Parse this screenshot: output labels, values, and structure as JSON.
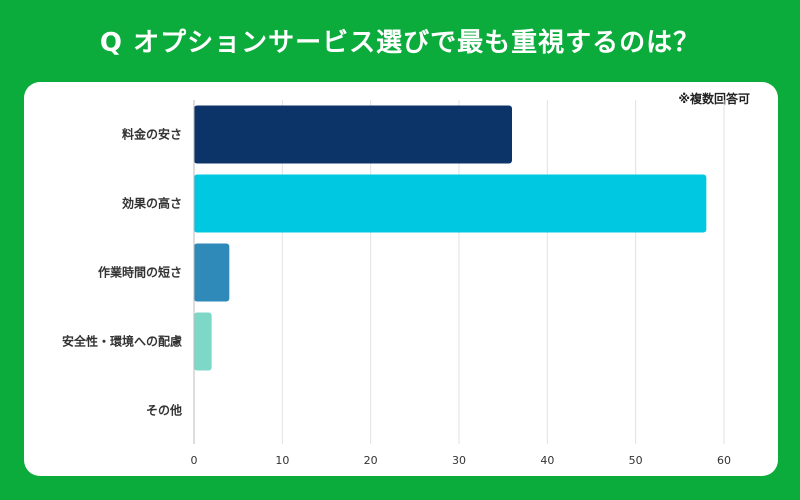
{
  "header": {
    "title": "Q オプションサービス選びで最も重視するのは？"
  },
  "note": "※複数回答可",
  "chart_data": {
    "type": "bar",
    "orientation": "horizontal",
    "title": "Q オプションサービス選びで最も重視するのは？",
    "categories": [
      "料金の安さ",
      "効果の高さ",
      "作業時間の短さ",
      "安全性・環境への配慮",
      "その他"
    ],
    "values": [
      36,
      58,
      4,
      2,
      0
    ],
    "colors": [
      "#0d3468",
      "#00c8e0",
      "#2f8ab9",
      "#7dd8c8",
      "#cccccc"
    ],
    "xlim": [
      0,
      60
    ],
    "xticks": [
      0,
      10,
      20,
      30,
      40,
      50,
      60
    ],
    "grid": true,
    "xlabel": "",
    "ylabel": ""
  }
}
